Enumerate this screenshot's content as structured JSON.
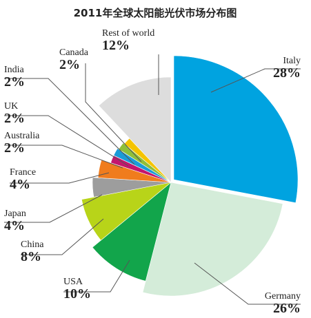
{
  "chart_data": {
    "type": "pie",
    "title": "2011年全球太阳能光伏市场分布图",
    "slices": [
      {
        "name": "Italy",
        "value": 28,
        "label": "28%",
        "color": "#00a3e0"
      },
      {
        "name": "Germany",
        "value": 26,
        "label": "26%",
        "color": "#d4ecd9"
      },
      {
        "name": "USA",
        "value": 10,
        "label": "10%",
        "color": "#12a54b"
      },
      {
        "name": "China",
        "value": 8,
        "label": "8%",
        "color": "#b8d419"
      },
      {
        "name": "Japan",
        "value": 4,
        "label": "4%",
        "color": "#9d9d9d"
      },
      {
        "name": "France",
        "value": 4,
        "label": "4%",
        "color": "#f07c1d"
      },
      {
        "name": "Australia",
        "value": 2,
        "label": "2%",
        "color": "#c3166d"
      },
      {
        "name": "UK",
        "value": 2,
        "label": "2%",
        "color": "#1a9bd8"
      },
      {
        "name": "India",
        "value": 2,
        "label": "2%",
        "color": "#8fbf3a"
      },
      {
        "name": "Canada",
        "value": 2,
        "label": "2%",
        "color": "#f5c400"
      },
      {
        "name": "Rest of world",
        "value": 12,
        "label": "12%",
        "color": "#dddddd"
      }
    ]
  }
}
